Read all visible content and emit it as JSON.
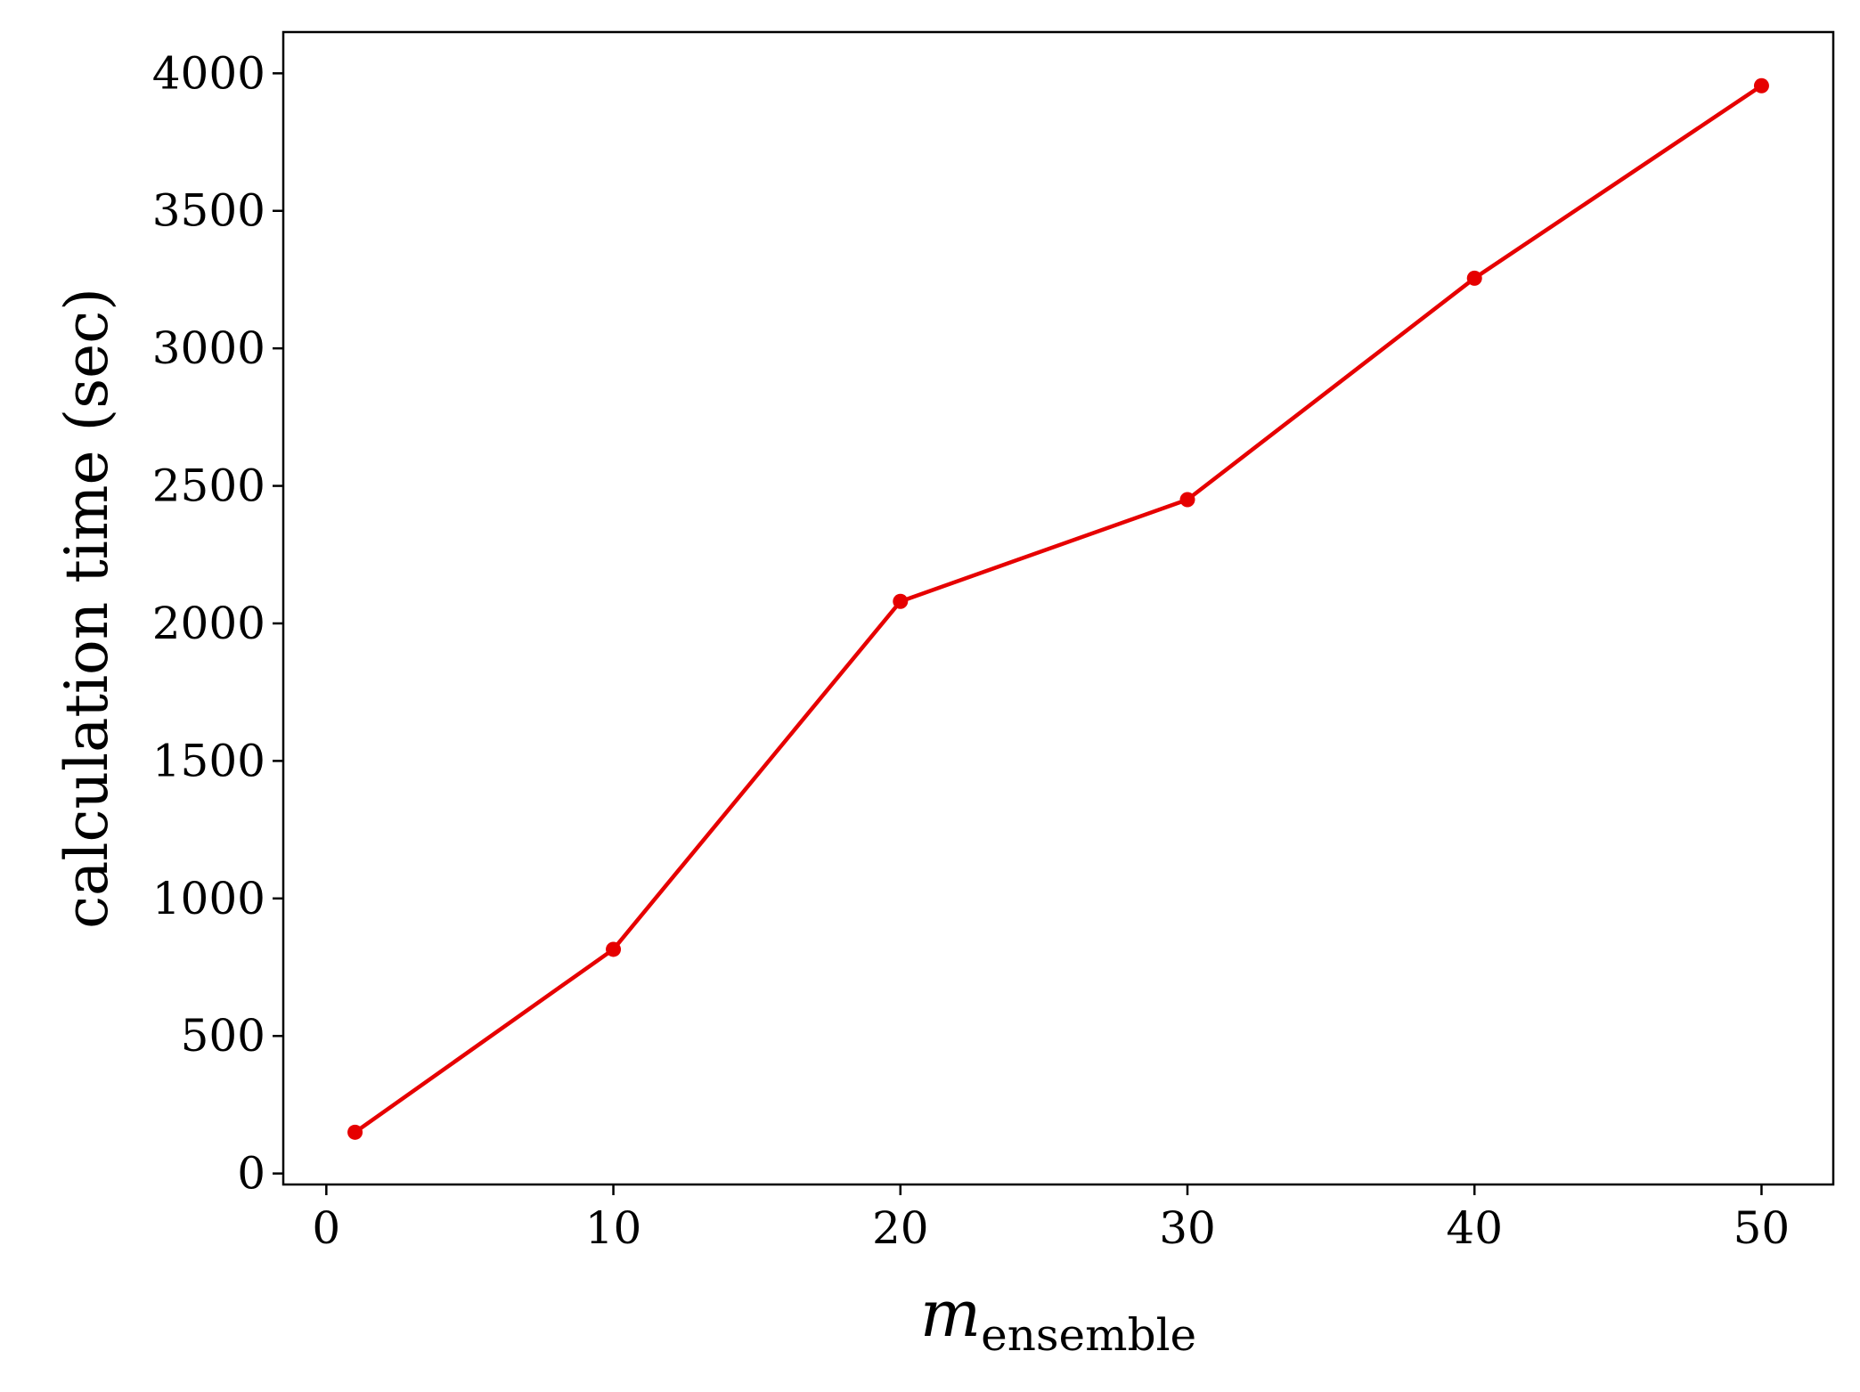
{
  "chart_data": {
    "type": "line",
    "title": "",
    "xlabel": "m",
    "xlabel_subscript": "ensemble",
    "ylabel": "calculation time (sec)",
    "xlim": [
      -1.5,
      52.5
    ],
    "ylim": [
      -40,
      4150
    ],
    "x_ticks": [
      0,
      10,
      20,
      30,
      40,
      50
    ],
    "y_ticks": [
      0,
      500,
      1000,
      1500,
      2000,
      2500,
      3000,
      3500,
      4000
    ],
    "grid": false,
    "legend": "none",
    "series": [
      {
        "color": "#e60000",
        "marker": "circle",
        "x": [
          1,
          10,
          20,
          30,
          40,
          50
        ],
        "y": [
          150,
          815,
          2080,
          2450,
          3255,
          3955
        ]
      }
    ]
  }
}
